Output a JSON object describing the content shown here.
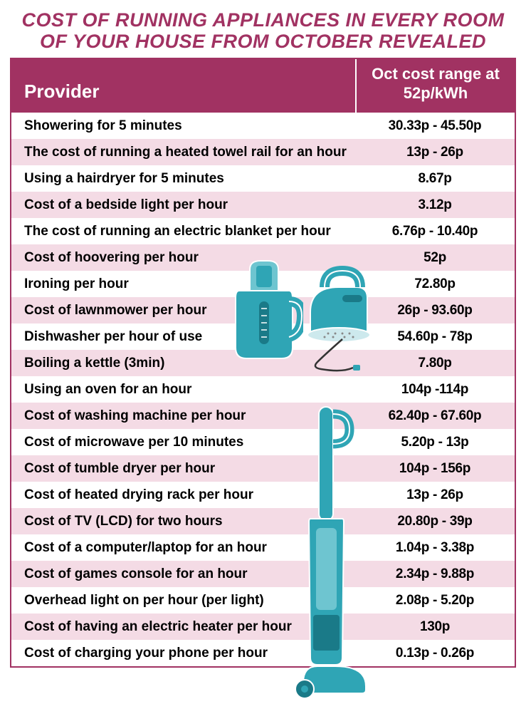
{
  "colors": {
    "brand": "#a13262",
    "header_text": "#ffffff",
    "stripe_odd": "#ffffff",
    "stripe_even": "#f4dbe5",
    "border": "#a13262",
    "appliance_main": "#2fa5b5",
    "appliance_light": "#6ec5d0",
    "appliance_dark": "#1a7a88",
    "appliance_outline": "#ffffff"
  },
  "title": "COST OF RUNNING APPLIANCES IN EVERY ROOM OF YOUR HOUSE FROM OCTOBER REVEALED",
  "headers": {
    "provider": "Provider",
    "cost": "Oct cost range at 52p/kWh"
  },
  "rows": [
    {
      "provider": "Showering for 5 minutes",
      "cost": "30.33p - 45.50p"
    },
    {
      "provider": "The cost of running a heated towel rail for an hour",
      "cost": "13p - 26p"
    },
    {
      "provider": "Using a hairdryer for 5 minutes",
      "cost": "8.67p"
    },
    {
      "provider": "Cost of a bedside light per hour",
      "cost": "3.12p"
    },
    {
      "provider": "The cost of running an electric blanket per hour",
      "cost": "6.76p - 10.40p"
    },
    {
      "provider": "Cost of hoovering per hour",
      "cost": "52p"
    },
    {
      "provider": "Ironing per hour",
      "cost": "72.80p"
    },
    {
      "provider": "Cost of lawnmower per hour",
      "cost": "26p - 93.60p"
    },
    {
      "provider": "Dishwasher per hour of use",
      "cost": "54.60p - 78p"
    },
    {
      "provider": "Boiling a kettle (3min)",
      "cost": "7.80p"
    },
    {
      "provider": "Using an oven for an hour",
      "cost": "104p -114p"
    },
    {
      "provider": "Cost of washing machine per hour",
      "cost": "62.40p - 67.60p"
    },
    {
      "provider": "Cost of microwave per 10 minutes",
      "cost": "5.20p - 13p"
    },
    {
      "provider": "Cost of tumble dryer per hour",
      "cost": "104p - 156p"
    },
    {
      "provider": "Cost of heated drying rack per hour",
      "cost": "13p - 26p"
    },
    {
      "provider": "Cost of TV (LCD) for two hours",
      "cost": "20.80p - 39p"
    },
    {
      "provider": "Cost of a computer/laptop for an hour",
      "cost": "1.04p - 3.38p"
    },
    {
      "provider": "Cost of games console for an hour",
      "cost": "2.34p - 9.88p"
    },
    {
      "provider": "Overhead light on per hour (per light)",
      "cost": "2.08p - 5.20p"
    },
    {
      "provider": "Cost of having an electric heater per hour",
      "cost": "130p"
    },
    {
      "provider": "Cost of charging your phone per hour",
      "cost": "0.13p - 0.26p"
    }
  ]
}
